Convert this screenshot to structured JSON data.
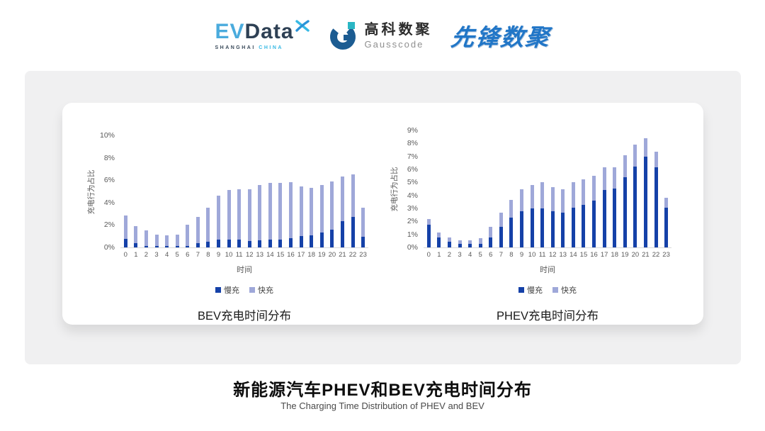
{
  "header": {
    "logos": {
      "evdata": {
        "primary": "EV",
        "secondary": "Data",
        "tagline_left": "SHANGHAI",
        "tagline_right": "CHINA"
      },
      "gausscode": {
        "cn": "高科数聚",
        "en": "Gausscode"
      },
      "pioneer": {
        "text": "先锋数聚"
      }
    }
  },
  "colors": {
    "slow_charge": "#1541a8",
    "fast_charge": "#9fa8d9",
    "axis_text": "#595959",
    "evdata_blue": "#4aabdd",
    "evdata_dark": "#2e4054",
    "gauss_blue": "#1c5c92",
    "gauss_teal": "#2ab6c4",
    "pioneer_blue": "#2176c7"
  },
  "chart_data": [
    {
      "type": "bar",
      "stacked": true,
      "title": "BEV充电时间分布",
      "xlabel": "时间",
      "ylabel": "充电行为占比",
      "ylim": [
        0,
        10
      ],
      "ytick_step": 2,
      "ytick_suffix": "%",
      "grid": false,
      "legend_position": "bottom",
      "categories": [
        "0",
        "1",
        "2",
        "3",
        "4",
        "5",
        "6",
        "7",
        "8",
        "9",
        "10",
        "11",
        "12",
        "13",
        "14",
        "15",
        "16",
        "17",
        "18",
        "19",
        "20",
        "21",
        "22",
        "23"
      ],
      "series": [
        {
          "name": "慢充",
          "color": "#1541a8",
          "values": [
            0.75,
            0.35,
            0.15,
            0.1,
            0.1,
            0.1,
            0.15,
            0.35,
            0.5,
            0.7,
            0.7,
            0.7,
            0.6,
            0.65,
            0.7,
            0.7,
            0.8,
            1.0,
            1.1,
            1.3,
            1.6,
            2.35,
            2.75,
            0.95
          ]
        },
        {
          "name": "快充",
          "color": "#9fa8d9",
          "values": [
            2.1,
            1.55,
            1.35,
            1.05,
            1.0,
            1.05,
            1.85,
            2.4,
            3.05,
            3.9,
            4.45,
            4.5,
            4.6,
            4.95,
            5.05,
            5.05,
            5.0,
            4.45,
            4.2,
            4.25,
            4.3,
            4.0,
            3.8,
            2.6
          ]
        }
      ]
    },
    {
      "type": "bar",
      "stacked": true,
      "title": "PHEV充电时间分布",
      "xlabel": "时间",
      "ylabel": "充电行为占比",
      "ylim": [
        0,
        9
      ],
      "ytick_step": 1,
      "ytick_suffix": "%",
      "grid": false,
      "legend_position": "bottom",
      "categories": [
        "0",
        "1",
        "2",
        "3",
        "4",
        "5",
        "6",
        "7",
        "8",
        "9",
        "10",
        "11",
        "12",
        "13",
        "14",
        "15",
        "16",
        "17",
        "18",
        "19",
        "20",
        "21",
        "22",
        "23"
      ],
      "series": [
        {
          "name": "慢充",
          "color": "#1541a8",
          "values": [
            1.75,
            0.75,
            0.45,
            0.25,
            0.25,
            0.3,
            0.75,
            1.6,
            2.3,
            2.8,
            3.0,
            3.0,
            2.8,
            2.65,
            3.05,
            3.25,
            3.6,
            4.4,
            4.55,
            5.4,
            6.2,
            7.0,
            6.15,
            3.05
          ]
        },
        {
          "name": "快充",
          "color": "#9fa8d9",
          "values": [
            0.45,
            0.4,
            0.3,
            0.3,
            0.3,
            0.4,
            0.85,
            1.1,
            1.35,
            1.7,
            1.8,
            2.0,
            1.85,
            1.85,
            1.95,
            2.0,
            1.9,
            1.75,
            1.6,
            1.7,
            1.7,
            1.4,
            1.2,
            0.75
          ]
        }
      ]
    }
  ],
  "footer": {
    "title": "新能源汽车PHEV和BEV充电时间分布",
    "subtitle": "The Charging Time Distribution of PHEV and BEV"
  }
}
